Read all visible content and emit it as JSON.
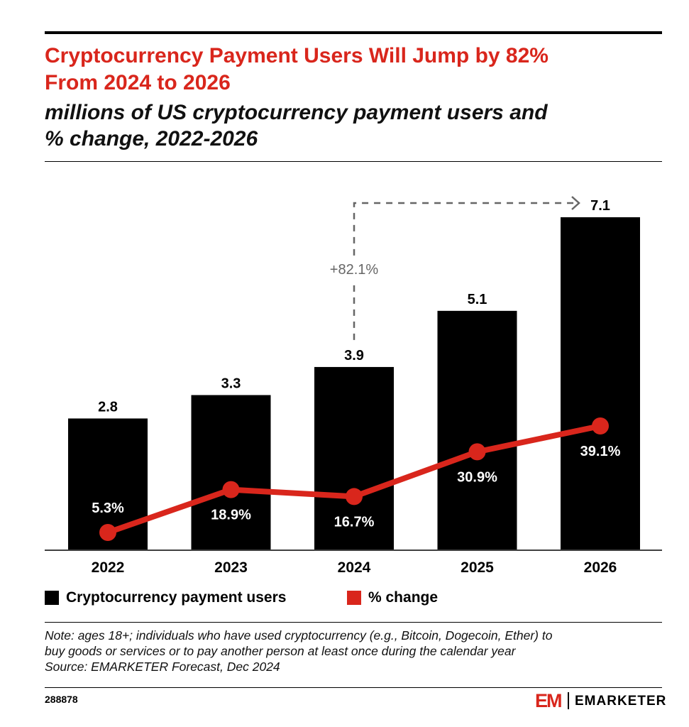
{
  "header": {
    "title_line1": "Cryptocurrency Payment Users Will Jump by 82%",
    "title_line2": "From 2024 to 2026",
    "subtitle_line1": "millions of US cryptocurrency payment users and",
    "subtitle_line2": "% change, 2022-2026"
  },
  "colors": {
    "accent": "#d9261c",
    "bar": "#000000",
    "annotation": "#666666"
  },
  "chart_data": {
    "type": "bar",
    "categories": [
      "2022",
      "2023",
      "2024",
      "2025",
      "2026"
    ],
    "series": [
      {
        "name": "Cryptocurrency payment users",
        "type": "bar",
        "values": [
          2.8,
          3.3,
          3.9,
          5.1,
          7.1
        ],
        "labels": [
          "2.8",
          "3.3",
          "3.9",
          "5.1",
          "7.1"
        ]
      },
      {
        "name": "% change",
        "type": "line",
        "values": [
          5.3,
          18.9,
          16.7,
          30.9,
          39.1
        ],
        "labels": [
          "5.3%",
          "18.9%",
          "16.7%",
          "30.9%",
          "39.1%"
        ]
      }
    ],
    "annotation": {
      "text": "+82.1%",
      "from": "2024",
      "to": "2026"
    },
    "legend_position": "bottom-left",
    "grid": false
  },
  "legend": {
    "bars_label": "Cryptocurrency payment users",
    "line_label": "% change"
  },
  "footer": {
    "note_line1": "Note: ages 18+; individuals who have used cryptocurrency (e.g., Bitcoin, Dogecoin, Ether) to",
    "note_line2": "buy goods or services or to pay another person at least once during the calendar year",
    "source": "Source: EMARKETER Forecast, Dec 2024",
    "chart_id": "288878",
    "logo_mark": "EM",
    "logo_text": "EMARKETER"
  }
}
